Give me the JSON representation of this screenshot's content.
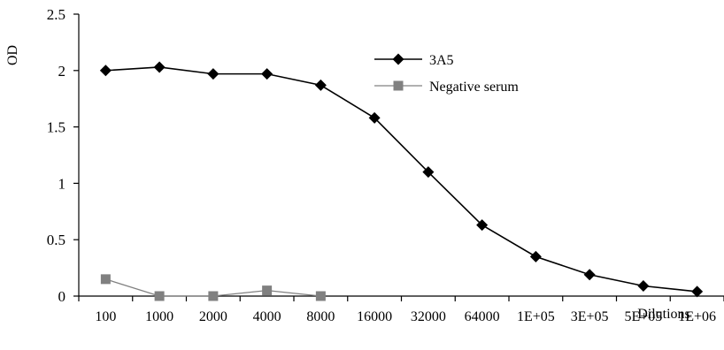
{
  "chart_data": {
    "type": "line",
    "ylabel": "OD",
    "xlabel": "Dilutions",
    "categories": [
      "100",
      "1000",
      "2000",
      "4000",
      "8000",
      "16000",
      "32000",
      "64000",
      "1E+05",
      "3E+05",
      "5E+05",
      "1E+06"
    ],
    "yticks": [
      "0",
      "0.5",
      "1",
      "1.5",
      "2",
      "2.5"
    ],
    "ylim": [
      0,
      2.5
    ],
    "grid": false,
    "legend_position": "top-right",
    "series": [
      {
        "name": "3A5",
        "marker": "diamond",
        "color": "#000000",
        "values": [
          2.0,
          2.03,
          1.97,
          1.97,
          1.87,
          1.58,
          1.1,
          0.63,
          0.35,
          0.19,
          0.09,
          0.04
        ]
      },
      {
        "name": "Negative serum",
        "marker": "square",
        "color": "#808080",
        "values": [
          0.15,
          0.0,
          0.0,
          0.05,
          0.0,
          null,
          null,
          null,
          null,
          null,
          null,
          null
        ]
      }
    ]
  }
}
